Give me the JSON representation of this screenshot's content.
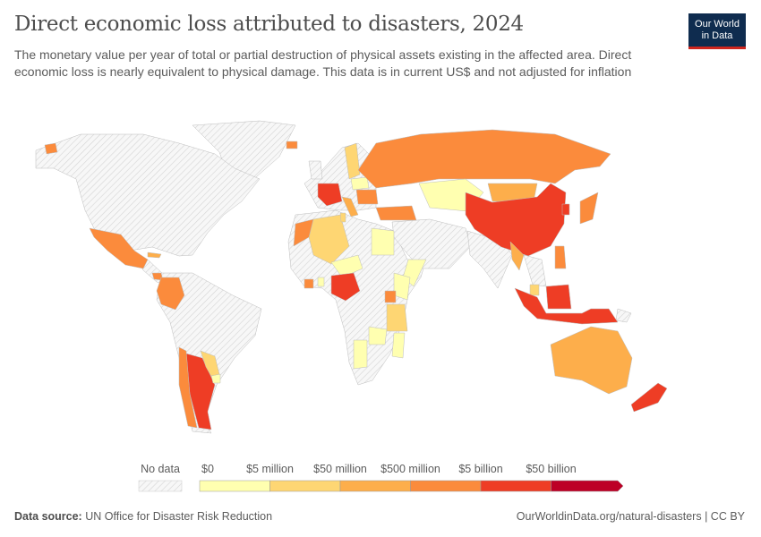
{
  "header": {
    "title": "Direct economic loss attributed to disasters, 2024",
    "subtitle": "The monetary value per year of total or partial destruction of physical assets existing in the affected area. Direct economic loss is nearly equivalent to physical damage. This data is in current US$ and not adjusted for inflation",
    "logo_text": "Our World in Data",
    "logo_colors": {
      "background": "#0f2c4f",
      "underline": "#ce261e"
    }
  },
  "legend": {
    "no_data_label": "No data",
    "no_data_color": "#e6e6e6",
    "bins": [
      {
        "label": "$0",
        "color": "#ffffb0"
      },
      {
        "label": "$5 million",
        "color": "#fed673"
      },
      {
        "label": "$50 million",
        "color": "#fdae4b"
      },
      {
        "label": "$500 million",
        "color": "#fb8b3c"
      },
      {
        "label": "$5 billion",
        "color": "#ee3d25"
      },
      {
        "label": "$50 billion",
        "color": "#bd0026"
      }
    ]
  },
  "footer": {
    "source_label": "Data source:",
    "source": "UN Office for Disaster Risk Reduction",
    "link": "OurWorldinData.org/natural-disasters | CC BY"
  }
}
